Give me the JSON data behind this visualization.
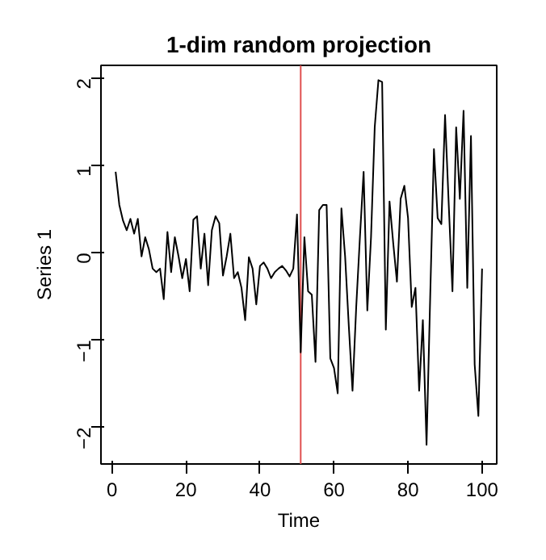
{
  "chart_data": {
    "type": "line",
    "title": "1-dim random projection",
    "xlabel": "Time",
    "ylabel": "Series 1",
    "x": [
      1,
      2,
      3,
      4,
      5,
      6,
      7,
      8,
      9,
      10,
      11,
      12,
      13,
      14,
      15,
      16,
      17,
      18,
      19,
      20,
      21,
      22,
      23,
      24,
      25,
      26,
      27,
      28,
      29,
      30,
      31,
      32,
      33,
      34,
      35,
      36,
      37,
      38,
      39,
      40,
      41,
      42,
      43,
      44,
      45,
      46,
      47,
      48,
      49,
      50,
      51,
      52,
      53,
      54,
      55,
      56,
      57,
      58,
      59,
      60,
      61,
      62,
      63,
      64,
      65,
      66,
      67,
      68,
      69,
      70,
      71,
      72,
      73,
      74,
      75,
      76,
      77,
      78,
      79,
      80,
      81,
      82,
      83,
      84,
      85,
      86,
      87,
      88,
      89,
      90,
      91,
      92,
      93,
      94,
      95,
      96,
      97,
      98,
      99,
      100
    ],
    "series": [
      {
        "color": "#000000",
        "values": [
          0.93,
          0.55,
          0.37,
          0.26,
          0.39,
          0.22,
          0.39,
          -0.04,
          0.18,
          0.04,
          -0.18,
          -0.22,
          -0.18,
          -0.53,
          0.24,
          -0.22,
          0.18,
          -0.04,
          -0.29,
          -0.07,
          -0.44,
          0.38,
          0.42,
          -0.18,
          0.22,
          -0.37,
          0.26,
          0.42,
          0.34,
          -0.26,
          -0.04,
          0.22,
          -0.29,
          -0.22,
          -0.4,
          -0.77,
          -0.05,
          -0.18,
          -0.59,
          -0.15,
          -0.11,
          -0.18,
          -0.29,
          -0.22,
          -0.18,
          -0.15,
          -0.2,
          -0.27,
          -0.18,
          0.44,
          -1.14,
          0.18,
          -0.44,
          -0.48,
          -1.25,
          0.49,
          0.55,
          0.55,
          -1.21,
          -1.32,
          -1.61,
          0.51,
          -0.04,
          -0.84,
          -1.58,
          -0.62,
          0.18,
          0.93,
          -0.66,
          0.18,
          1.44,
          1.98,
          1.96,
          -0.88,
          0.59,
          0.11,
          -0.33,
          0.62,
          0.77,
          0.4,
          -0.62,
          -0.4,
          -1.58,
          -0.77,
          -2.2,
          -0.48,
          1.19,
          0.4,
          0.33,
          1.58,
          0.55,
          -0.44,
          1.44,
          0.62,
          1.63,
          -0.4,
          1.34,
          -1.28,
          -1.87,
          -0.18
        ]
      }
    ],
    "xlim": [
      -2.96,
      103.96
    ],
    "ylim": [
      -2.42,
      2.15
    ],
    "xticks": [
      0,
      20,
      40,
      60,
      80,
      100
    ],
    "yticks": [
      -2,
      -1,
      0,
      1,
      2
    ],
    "ref_lines": [
      {
        "axis": "x",
        "value": 51,
        "color": "#e05050"
      }
    ],
    "grid": false
  }
}
